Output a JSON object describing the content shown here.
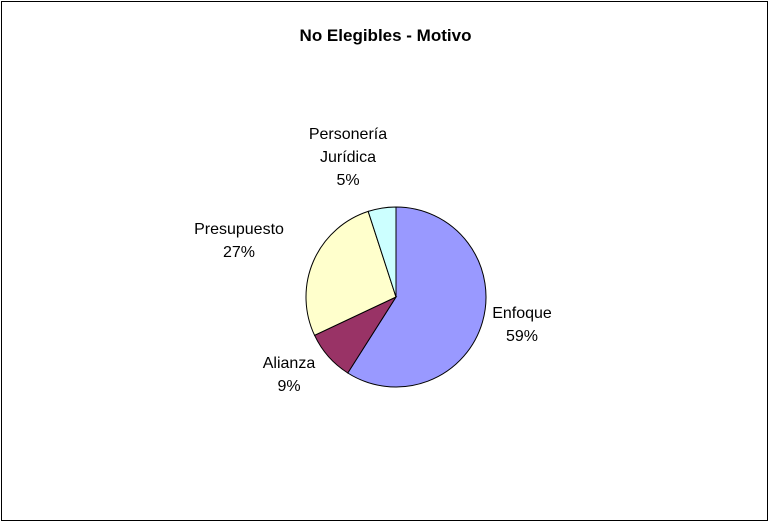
{
  "chart_data": {
    "type": "pie",
    "title": "No Elegibles - Motivo",
    "slices": [
      {
        "label": [
          "Enfoque"
        ],
        "percent_label": "59%",
        "value": 59,
        "color": "#9999ff"
      },
      {
        "label": [
          "Alianza"
        ],
        "percent_label": "9%",
        "value": 9,
        "color": "#993366"
      },
      {
        "label": [
          "Presupuesto"
        ],
        "percent_label": "27%",
        "value": 27,
        "color": "#ffffcc"
      },
      {
        "label": [
          "Personería",
          "Jurídica"
        ],
        "percent_label": "5%",
        "value": 5,
        "color": "#ccffff"
      }
    ]
  }
}
